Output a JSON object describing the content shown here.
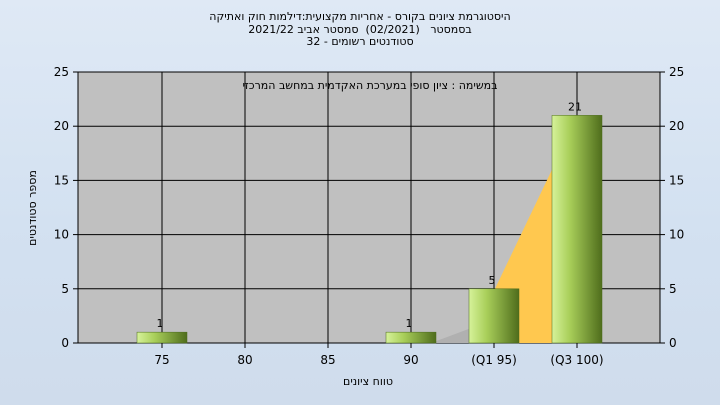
{
  "chart_data": {
    "type": "bar",
    "title_lines": [
      "היסטוגרמת ציונים בקורס - אחריות מקצועית:דילמות חוק ואתיקה",
      "בסמסטר   (02/2021)  סמסטר אביב 2021/22",
      "סטודנטים רשומים - 32"
    ],
    "annotation": "במשימה : ציון סופי במערכת האקדמית במחשב המרכזי",
    "xlabel": "טווח ציונים",
    "ylabel": "מספר סטודנטים",
    "categories": [
      "75",
      "80",
      "85",
      "90",
      "(Q1 95)",
      "(Q3 100)"
    ],
    "values": [
      1,
      0,
      0,
      1,
      5,
      21
    ],
    "value_labels": [
      "1",
      "",
      "",
      "1",
      "5",
      "21"
    ],
    "ylim": [
      0,
      25
    ],
    "yticks": [
      0,
      5,
      10,
      15,
      20,
      25
    ],
    "grid": true,
    "colors": {
      "plot_bg": "#c0c0c0",
      "bar_light": "#c9e88a",
      "bar_dark": "#5a7a22",
      "quartile_fill": "#ffc84f",
      "quartile_gray": "#b0b0b0",
      "grid": "#000000"
    }
  }
}
